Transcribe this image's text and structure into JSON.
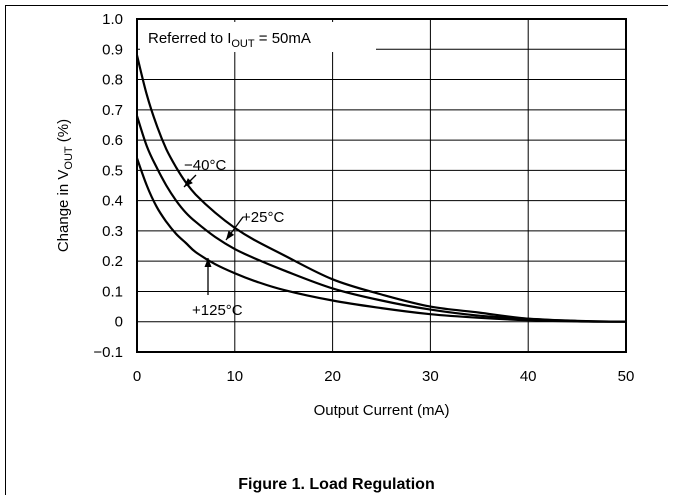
{
  "caption": "Figure 1. Load Regulation",
  "chart_data": {
    "type": "line",
    "title": "",
    "xlabel": "Output Current (mA)",
    "ylabel_main": "Change in V",
    "ylabel_sub": "OUT",
    "ylabel_tail": " (%)",
    "xlim": [
      0,
      50
    ],
    "ylim": [
      -0.1,
      1.0
    ],
    "grid": true,
    "x_ticks": [
      "0",
      "10",
      "20",
      "30",
      "40",
      "50"
    ],
    "y_ticks": [
      "−0.1",
      "0",
      "0.1",
      "0.2",
      "0.3",
      "0.4",
      "0.5",
      "0.6",
      "0.7",
      "0.8",
      "0.9",
      "1.0"
    ],
    "note": {
      "prefix": "Referred to I",
      "sub": "OUT",
      "suffix": " = 50mA"
    },
    "series": [
      {
        "name": "−40°C",
        "x": [
          0,
          1,
          2,
          3,
          4,
          5,
          6,
          8,
          10,
          12,
          15,
          20,
          25,
          30,
          35,
          40,
          45,
          50
        ],
        "y": [
          0.88,
          0.75,
          0.65,
          0.57,
          0.51,
          0.46,
          0.42,
          0.36,
          0.31,
          0.27,
          0.22,
          0.14,
          0.09,
          0.05,
          0.03,
          0.01,
          0.003,
          0
        ]
      },
      {
        "name": "+25°C",
        "x": [
          0,
          1,
          2,
          3,
          4,
          5,
          6,
          8,
          10,
          12,
          15,
          20,
          25,
          30,
          35,
          40,
          45,
          50
        ],
        "y": [
          0.68,
          0.58,
          0.51,
          0.45,
          0.4,
          0.36,
          0.33,
          0.28,
          0.24,
          0.21,
          0.17,
          0.11,
          0.07,
          0.04,
          0.02,
          0.01,
          0.002,
          0
        ]
      },
      {
        "name": "+125°C",
        "x": [
          0,
          1,
          2,
          3,
          4,
          5,
          6,
          8,
          10,
          12,
          15,
          20,
          25,
          30,
          35,
          40,
          45,
          50
        ],
        "y": [
          0.54,
          0.45,
          0.38,
          0.33,
          0.29,
          0.26,
          0.23,
          0.19,
          0.16,
          0.135,
          0.105,
          0.07,
          0.045,
          0.025,
          0.013,
          0.005,
          0.001,
          0
        ]
      }
    ]
  }
}
